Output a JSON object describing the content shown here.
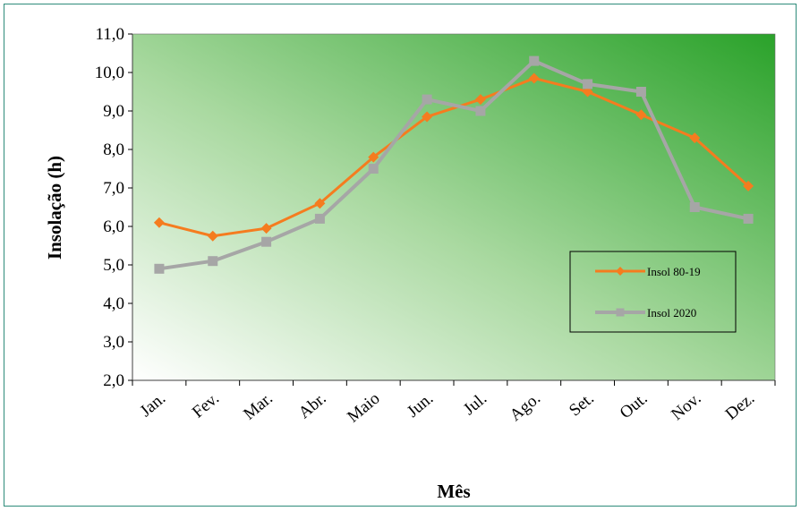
{
  "chart_data": {
    "type": "line",
    "title": "",
    "xlabel": "Mês",
    "ylabel": "Insolação (h)",
    "ylim": [
      2.0,
      11.0
    ],
    "y_ticks": [
      "2,0",
      "3,0",
      "4,0",
      "5,0",
      "6,0",
      "7,0",
      "8,0",
      "9,0",
      "10,0",
      "11,0"
    ],
    "categories": [
      "Jan.",
      "Fev.",
      "Mar.",
      "Abr.",
      "Maio",
      "Jun.",
      "Jul.",
      "Ago.",
      "Set.",
      "Out.",
      "Nov.",
      "Dez."
    ],
    "grid": false,
    "legend_position": "right",
    "background": "gradient white to green (top-right)",
    "series": [
      {
        "name": "Insol 80-19",
        "color": "#f57c1f",
        "marker": "diamond",
        "values": [
          6.1,
          5.75,
          5.95,
          6.6,
          7.8,
          8.85,
          9.3,
          9.85,
          9.5,
          8.9,
          8.3,
          7.05
        ]
      },
      {
        "name": "Insol 2020",
        "color": "#a6a6a6",
        "marker": "square",
        "values": [
          4.9,
          5.1,
          5.6,
          6.2,
          7.5,
          9.3,
          9.0,
          10.3,
          9.7,
          9.5,
          6.5,
          6.2
        ]
      }
    ]
  }
}
